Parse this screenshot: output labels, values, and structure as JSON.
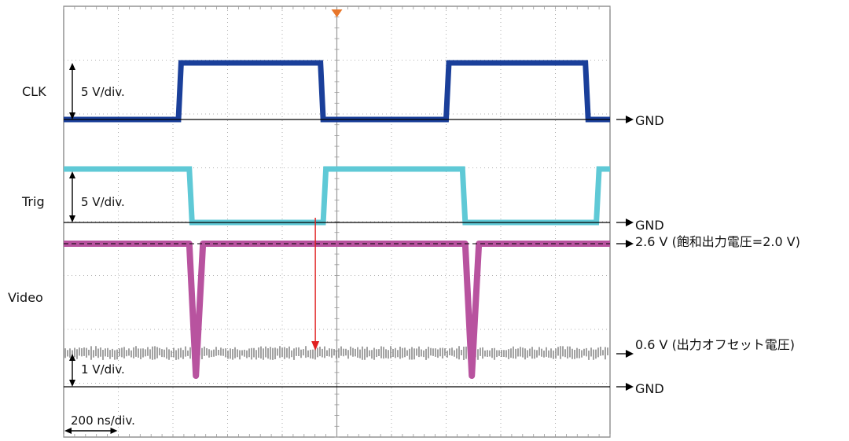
{
  "chart_data": {
    "type": "line",
    "title": "",
    "timebase": {
      "label": "200 ns/div.",
      "divisions": 10
    },
    "grid": true,
    "channels": [
      {
        "name": "CLK",
        "scale_label": "5 V/div.",
        "ground_label": "GND",
        "color": "#1a3f9a",
        "unit": "div",
        "waveform": [
          [
            0,
            0
          ],
          [
            2.1,
            0
          ],
          [
            2.15,
            1
          ],
          [
            4.7,
            1
          ],
          [
            4.75,
            0
          ],
          [
            7.0,
            0
          ],
          [
            7.05,
            1
          ],
          [
            9.55,
            1
          ],
          [
            9.6,
            0
          ],
          [
            10,
            0
          ]
        ]
      },
      {
        "name": "Trig",
        "scale_label": "5 V/div.",
        "ground_label": "GND",
        "color": "#5fc9d6",
        "unit": "div",
        "waveform": [
          [
            0,
            1
          ],
          [
            2.3,
            1
          ],
          [
            2.35,
            0
          ],
          [
            4.75,
            0
          ],
          [
            4.8,
            1
          ],
          [
            7.3,
            1
          ],
          [
            7.35,
            0
          ],
          [
            9.75,
            0
          ],
          [
            9.8,
            1
          ],
          [
            10,
            1
          ]
        ]
      },
      {
        "name": "Video",
        "scale_label": "1 V/div.",
        "ground_label": "GND",
        "color": "#b8539f",
        "noise_color": "#8a8a8a",
        "unit": "V",
        "annotations": [
          {
            "value": 2.6,
            "label": "2.6 V (飽和出力電圧=2.0 V)"
          },
          {
            "value": 0.6,
            "label": "0.6 V (出力オフセット電圧)"
          }
        ],
        "waveform": [
          [
            0,
            2.6
          ],
          [
            2.3,
            2.6
          ],
          [
            2.42,
            0.2
          ],
          [
            2.55,
            2.6
          ],
          [
            7.35,
            2.6
          ],
          [
            7.47,
            0.2
          ],
          [
            7.6,
            2.6
          ],
          [
            10,
            2.6
          ]
        ]
      }
    ],
    "trigger_marker": {
      "color": "#e8762a"
    },
    "trigger_arrow": {
      "color": "#e02020"
    }
  }
}
